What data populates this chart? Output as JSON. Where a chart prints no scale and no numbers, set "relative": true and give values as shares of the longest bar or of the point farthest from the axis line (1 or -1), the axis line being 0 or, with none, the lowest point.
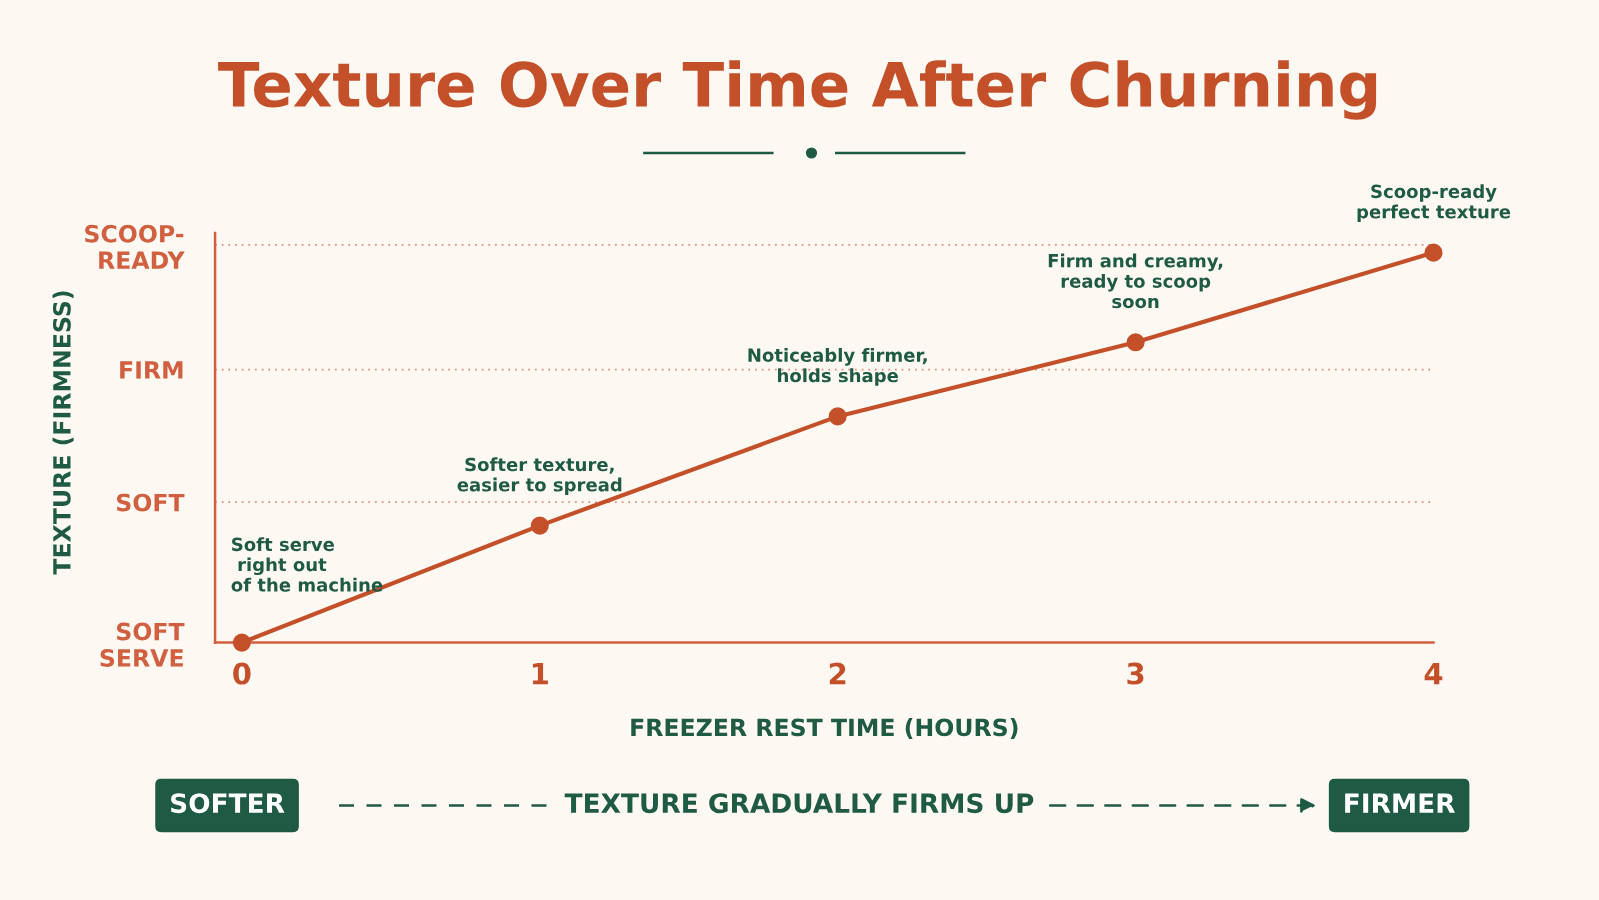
{
  "chart_data": {
    "type": "line",
    "title": "Texture Over Time After Churning",
    "xlabel": "FREEZER REST TIME (HOURS)",
    "x": [
      0,
      1,
      2,
      3,
      4
    ],
    "series": [
      {
        "color": "#c4502a",
        "values": [
          0.0,
          0.3,
          0.58,
          0.77,
          1.0
        ]
      }
    ],
    "relative": true,
    "xlim": [
      -0.09,
      4
    ],
    "xticks": [
      0,
      1,
      2,
      3,
      4
    ],
    "ref_lines": [
      {
        "axis": "y",
        "value": 0.36,
        "label": "SOFT",
        "color": "#d0603f",
        "line_style": "dotted"
      },
      {
        "axis": "y",
        "value": 0.7,
        "label": "FIRM",
        "color": "#d0603f",
        "line_style": "dotted"
      },
      {
        "axis": "y",
        "value": 1.02,
        "label": "SCOOP-\nREADY",
        "color": "#d0603f",
        "line_style": "dotted"
      }
    ],
    "marker": "circle",
    "line_style": "solid",
    "annotations": [
      {
        "text": "Soft serve\n right out\nof the machine",
        "x": 0,
        "y": 0.0
      },
      {
        "text": "Softer texture,\neasier to spread",
        "x": 1,
        "y": 0.3
      },
      {
        "text": "Noticeably firmer,\nholds shape",
        "x": 2,
        "y": 0.58
      },
      {
        "text": "Firm and creamy,\nready to scoop\nsoon",
        "x": 3,
        "y": 0.77
      },
      {
        "text": "Scoop-ready\nperfect texture",
        "x": 4,
        "y": 1.0
      },
      "TEXTURE (FIRMNESS)",
      "SOFT\nSERVE",
      "SOFTER",
      "TEXTURE GRADUALLY FIRMS UP",
      "FIRMER"
    ]
  }
}
